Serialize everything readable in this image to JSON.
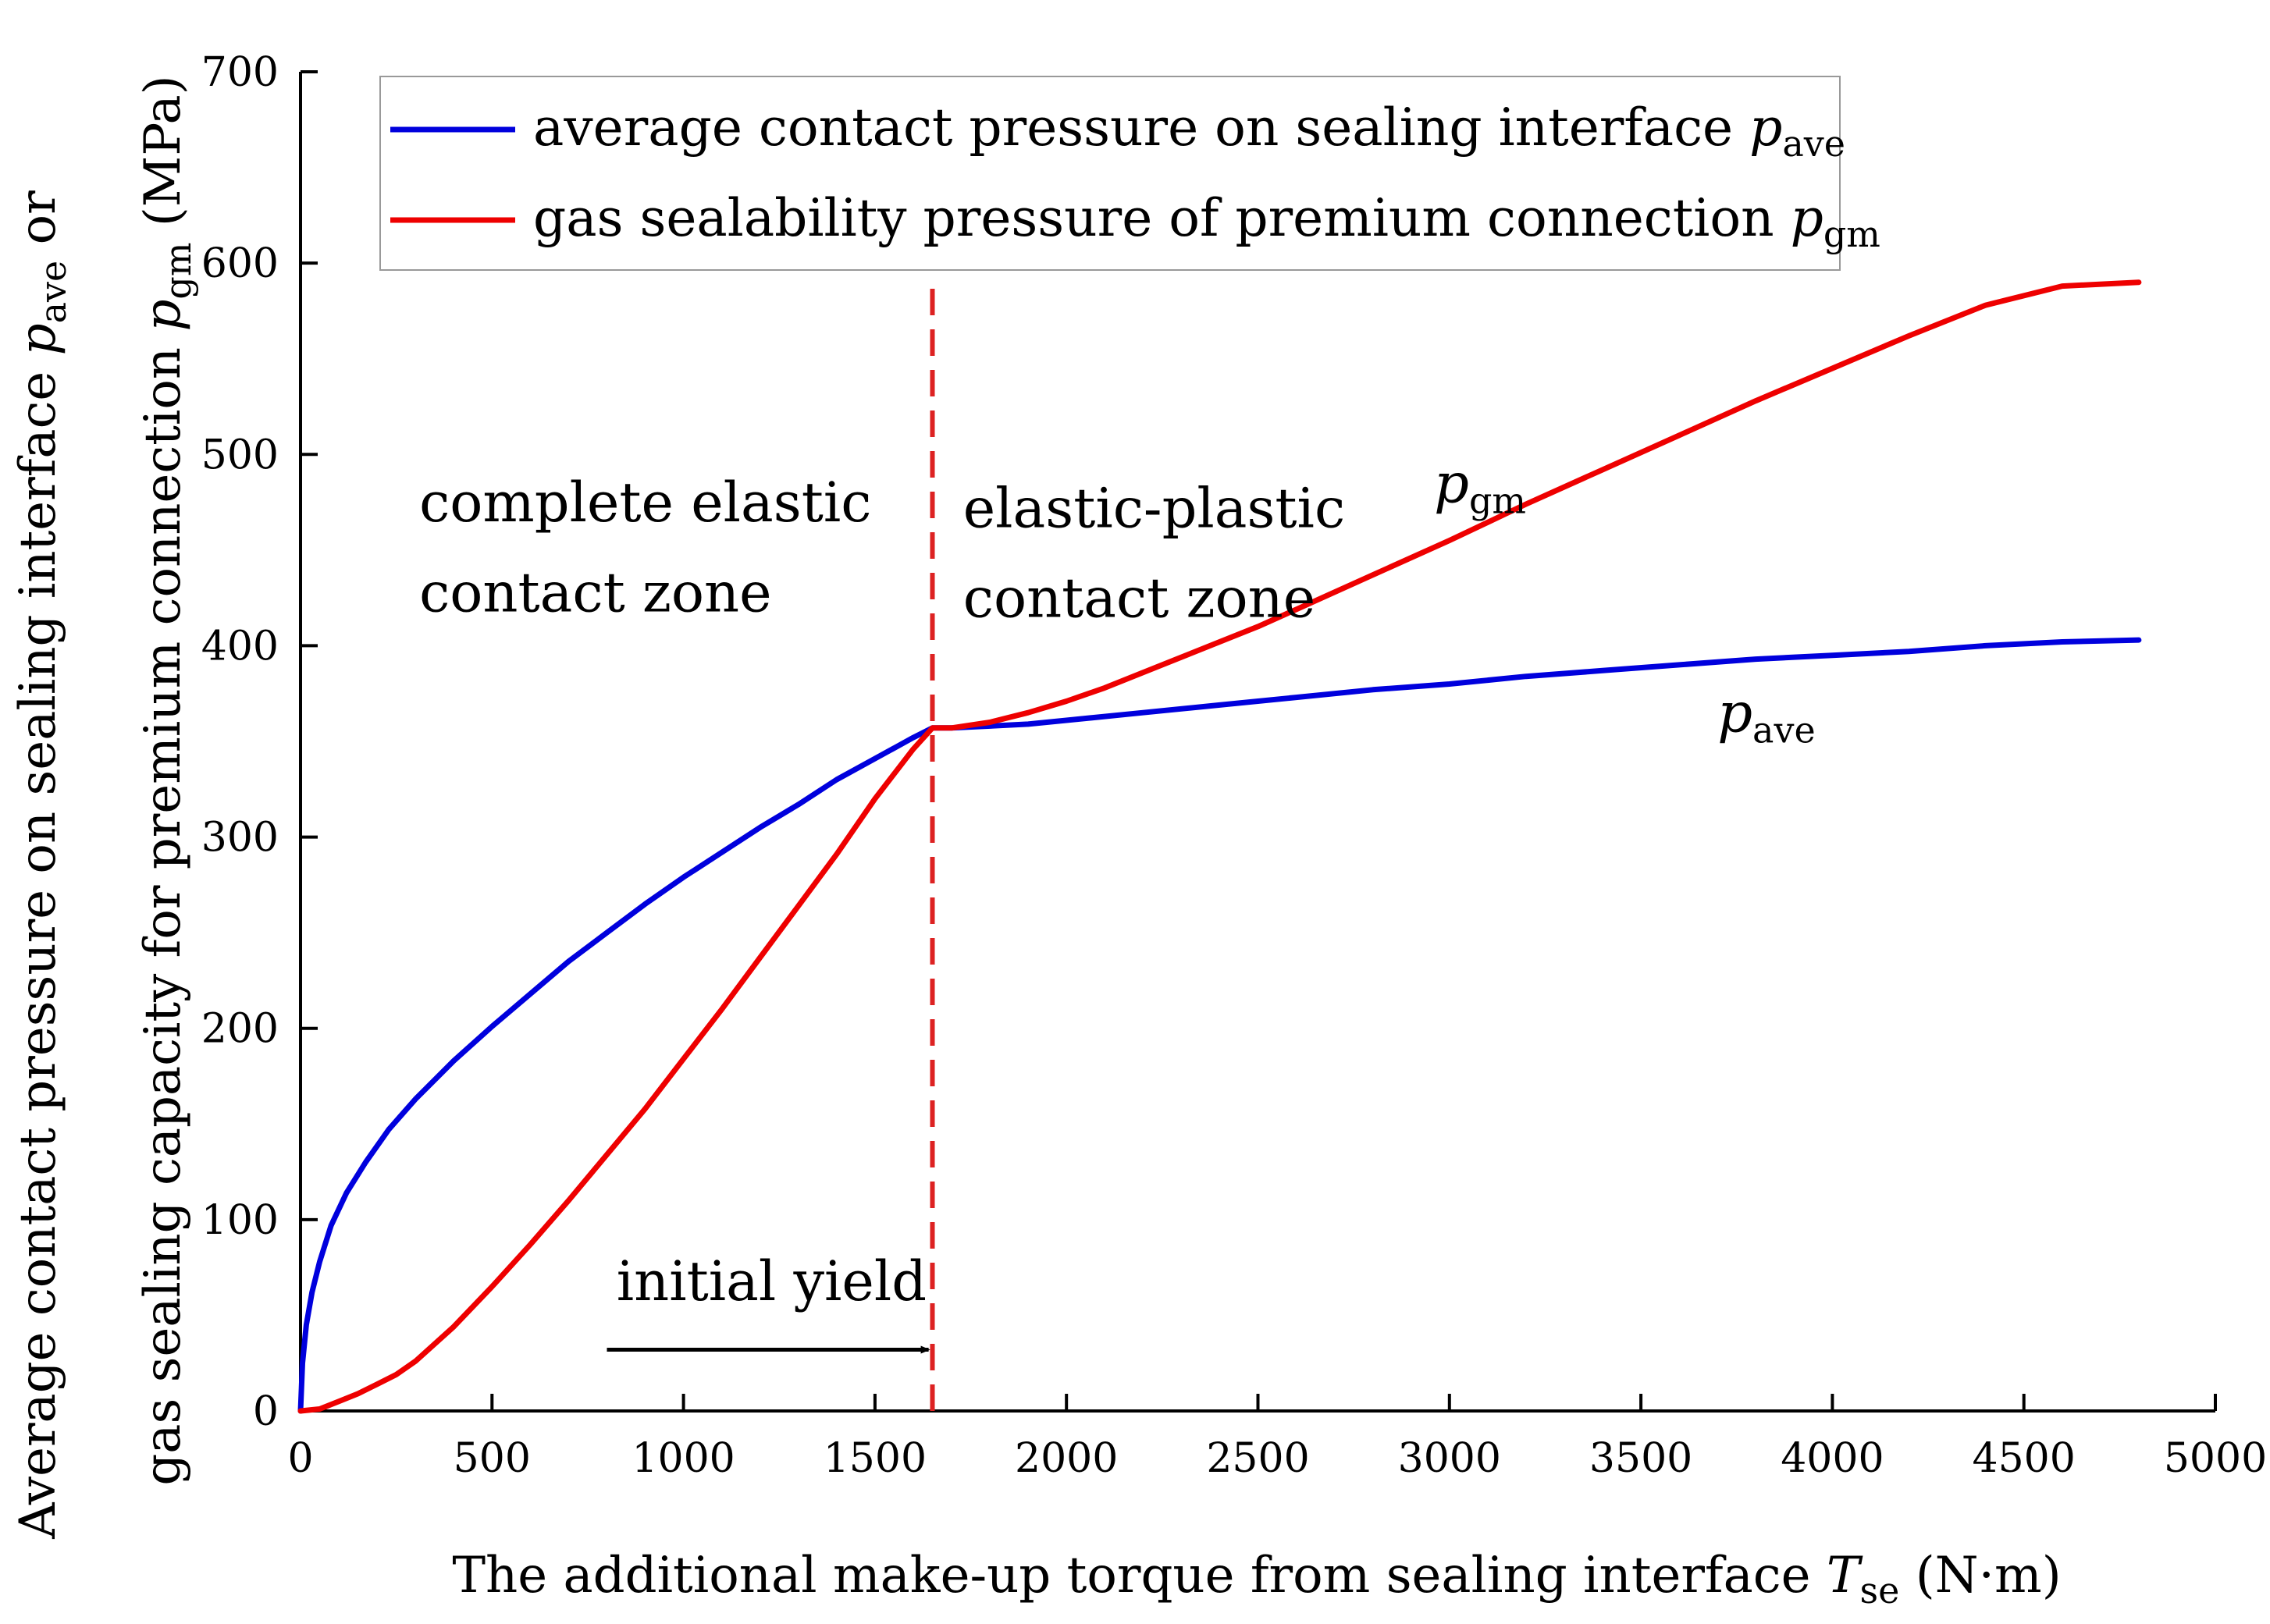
{
  "chart_data": {
    "type": "line",
    "x_axis": {
      "label_main": "The additional make-up torque  from sealing interface ",
      "label_var": "T",
      "label_sub": "se",
      "label_unit": " (N·m)",
      "xlim": [
        0,
        5000
      ],
      "ticks": [
        "0",
        "500",
        "1000",
        "1500",
        "2000",
        "2500",
        "3000",
        "3500",
        "4000",
        "4500",
        "5000"
      ]
    },
    "y_axis": {
      "line1_main": "Average contact pressure on sealing interface ",
      "line1_var": "p",
      "line1_sub": "ave",
      "line1_tail": " or",
      "line2_main": "gas sealing capacity for premium connection ",
      "line2_var": "p",
      "line2_sub": "gm",
      "line2_tail": " (MPa)",
      "ylim": [
        0,
        700
      ],
      "ticks": [
        "0",
        "100",
        "200",
        "300",
        "400",
        "500",
        "600",
        "700"
      ]
    },
    "legend": {
      "placement": "top-left",
      "entries": [
        {
          "text": "average  contact pressure on sealing interface ",
          "var": "p",
          "sub": "ave",
          "color": "#0000dd"
        },
        {
          "text": "gas sealability pressure of  premium connection ",
          "var": "p",
          "sub": "gm",
          "color": "#ee0000"
        }
      ]
    },
    "series": [
      {
        "name": "p_ave",
        "color": "#0000dd",
        "x": [
          0,
          5,
          15,
          30,
          50,
          80,
          120,
          170,
          230,
          300,
          400,
          500,
          600,
          700,
          800,
          900,
          1000,
          1100,
          1200,
          1300,
          1400,
          1500,
          1600,
          1650,
          1700,
          1800,
          1900,
          2000,
          2200,
          2400,
          2600,
          2800,
          3000,
          3200,
          3400,
          3600,
          3800,
          4000,
          4200,
          4400,
          4600,
          4800
        ],
        "values": [
          0,
          25,
          45,
          62,
          78,
          97,
          114,
          130,
          147,
          163,
          183,
          201,
          218,
          235,
          250,
          265,
          279,
          292,
          305,
          317,
          330,
          341,
          352,
          357,
          357,
          358,
          359,
          361,
          365,
          369,
          373,
          377,
          380,
          384,
          387,
          390,
          393,
          395,
          397,
          400,
          402,
          403
        ]
      },
      {
        "name": "p_gm",
        "color": "#ee0000",
        "x": [
          0,
          50,
          100,
          150,
          200,
          250,
          300,
          400,
          500,
          600,
          700,
          800,
          900,
          1000,
          1100,
          1200,
          1300,
          1400,
          1500,
          1600,
          1650,
          1700,
          1800,
          1900,
          2000,
          2100,
          2200,
          2300,
          2400,
          2500,
          2600,
          2800,
          3000,
          3200,
          3400,
          3600,
          3800,
          4000,
          4200,
          4400,
          4600,
          4800
        ],
        "values": [
          0,
          1,
          5,
          9,
          14,
          19,
          26,
          44,
          65,
          87,
          110,
          134,
          158,
          184,
          210,
          237,
          264,
          291,
          320,
          346,
          357,
          357,
          360,
          365,
          371,
          378,
          386,
          394,
          402,
          410,
          419,
          437,
          455,
          474,
          492,
          510,
          528,
          545,
          562,
          578,
          588,
          590
        ]
      }
    ],
    "reference_line": {
      "x": 1650,
      "color": "#dd2222",
      "style": "dashed"
    },
    "annotations": [
      {
        "id": "zone-elastic-1",
        "text": "complete elastic",
        "x": 310,
        "y": 465
      },
      {
        "id": "zone-elastic-2",
        "text": "contact zone",
        "x": 310,
        "y": 418
      },
      {
        "id": "zone-plastic-1",
        "text": "elastic-plastic",
        "x": 1730,
        "y": 462
      },
      {
        "id": "zone-plastic-2",
        "text": "contact zone",
        "x": 1730,
        "y": 415
      },
      {
        "id": "initial-yield",
        "text": "initial yield",
        "x": 825,
        "y": 58
      }
    ],
    "curve_labels": [
      {
        "id": "label-pgm",
        "var": "p",
        "sub": "gm",
        "x": 2960,
        "y": 475
      },
      {
        "id": "label-pave",
        "var": "p",
        "sub": "ave",
        "x": 3700,
        "y": 355
      }
    ],
    "arrow": {
      "x_from": 800,
      "x_to": 1640,
      "y": 32
    }
  }
}
